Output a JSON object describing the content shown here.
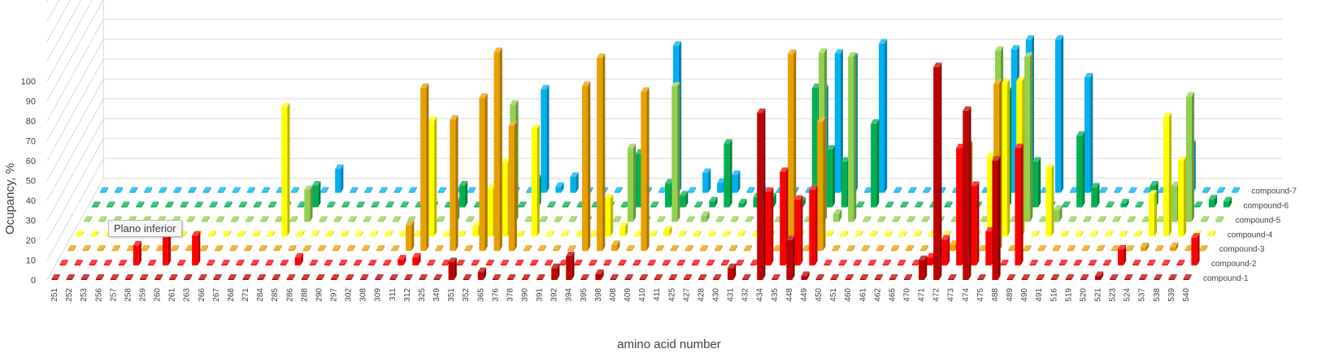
{
  "chart_data": {
    "type": "bar",
    "subtype": "3d-column",
    "xlabel": "amino acid number",
    "ylabel": "Ocupancy, %",
    "ylim": [
      0,
      100
    ],
    "yticks": [
      0,
      10,
      20,
      30,
      40,
      50,
      60,
      70,
      80,
      90,
      100
    ],
    "grid": true,
    "categories": [
      "251",
      "252",
      "253",
      "256",
      "257",
      "258",
      "259",
      "260",
      "261",
      "263",
      "266",
      "267",
      "268",
      "271",
      "284",
      "285",
      "286",
      "288",
      "290",
      "297",
      "302",
      "308",
      "309",
      "311",
      "312",
      "325",
      "349",
      "351",
      "352",
      "365",
      "376",
      "378",
      "390",
      "391",
      "392",
      "394",
      "395",
      "398",
      "408",
      "409",
      "410",
      "411",
      "425",
      "427",
      "428",
      "430",
      "431",
      "432",
      "434",
      "435",
      "448",
      "449",
      "450",
      "451",
      "460",
      "461",
      "462",
      "465",
      "470",
      "471",
      "472",
      "473",
      "474",
      "475",
      "488",
      "489",
      "490",
      "491",
      "516",
      "519",
      "520",
      "521",
      "523",
      "524",
      "537",
      "538",
      "539",
      "540"
    ],
    "series": [
      {
        "name": "compound-1",
        "color": "#c00000",
        "values": {
          "351": 9,
          "365": 4,
          "392": 6,
          "394": 12,
          "398": 3,
          "431": 6,
          "434": 84,
          "448": 20,
          "449": 2,
          "471": 10,
          "472": 107,
          "474": 85,
          "488": 60,
          "521": 2
        }
      },
      {
        "name": "compound-2",
        "color": "#ff0000",
        "values": {
          "258": 10,
          "260": 14,
          "263": 15,
          "286": 4,
          "311": 3,
          "312": 4,
          "434": 37,
          "435": 47,
          "448": 33,
          "449": 38,
          "471": 4,
          "472": 13,
          "473": 59,
          "474": 40,
          "475": 17,
          "489": 59,
          "523": 8,
          "540": 14
        }
      },
      {
        "name": "compound-3",
        "color": "#e8a000",
        "values": {
          "311": 13,
          "312": 82,
          "349": 66,
          "352": 77,
          "365": 100,
          "376": 63,
          "394": 83,
          "395": 97,
          "398": 3,
          "409": 80,
          "435": 99,
          "449": 65,
          "472": 3,
          "473": 53,
          "475": 84,
          "524": 2,
          "538": 2
        }
      },
      {
        "name": "compound-4",
        "color": "#ffff00",
        "values": {
          "284": 65,
          "312": 58,
          "351": 5,
          "352": 24,
          "365": 37,
          "378": 54,
          "395": 19,
          "398": 5,
          "410": 3,
          "448": 22,
          "474": 40,
          "475": 77,
          "488": 78,
          "490": 34,
          "524": 21,
          "537": 60,
          "538": 38
        }
      },
      {
        "name": "compound-5",
        "color": "#92d050",
        "values": {
          "285": 16,
          "325": 10,
          "365": 59,
          "398": 37,
          "410": 68,
          "425": 3,
          "448": 85,
          "449": 4,
          "450": 83,
          "474": 86,
          "488": 83,
          "490": 6,
          "537": 18,
          "538": 63
        }
      },
      {
        "name": "compound-6",
        "color": "#00b050",
        "values": {
          "285": 11,
          "325": 11,
          "376": 14,
          "398": 27,
          "409": 12,
          "410": 6,
          "425": 3,
          "427": 32,
          "428": 2,
          "430": 5,
          "431": 5,
          "434": 3,
          "435": 60,
          "448": 29,
          "449": 23,
          "451": 42,
          "474": 58,
          "475": 34,
          "488": 23,
          "491": 36,
          "516": 10,
          "520": 2,
          "523": 11,
          "524": 9,
          "537": 3,
          "539": 4,
          "540": 3
        }
      },
      {
        "name": "compound-7",
        "color": "#00b0f0",
        "values": {
          "286": 12,
          "376": 52,
          "378": 3,
          "390": 8,
          "409": 74,
          "411": 10,
          "425": 5,
          "427": 9,
          "435": 52,
          "448": 70,
          "449": 68,
          "451": 75,
          "474": 72,
          "475": 77,
          "489": 77,
          "491": 58,
          "537": 24
        }
      }
    ]
  },
  "tooltip": {
    "text": "Plano inferior"
  }
}
